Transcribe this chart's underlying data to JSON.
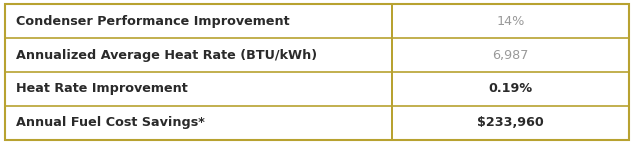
{
  "rows": [
    {
      "label": "Condenser Performance Improvement",
      "value": "14%",
      "value_bold": false
    },
    {
      "label": "Annualized Average Heat Rate (BTU/kWh)",
      "value": "6,987",
      "value_bold": false
    },
    {
      "label": "Heat Rate Improvement",
      "value": "0.19%",
      "value_bold": true
    },
    {
      "label": "Annual Fuel Cost Savings*",
      "value": "$233,960",
      "value_bold": true
    }
  ],
  "border_color": "#b8a230",
  "background_color": "#ffffff",
  "label_color": "#2a2a2a",
  "value_light_color": "#999999",
  "value_bold_color": "#2a2a2a",
  "col_split": 0.618,
  "fig_width": 6.34,
  "fig_height": 1.44,
  "label_fontsize": 9.2,
  "value_fontsize": 9.2,
  "border_lw": 1.5,
  "divider_lw": 1.2
}
